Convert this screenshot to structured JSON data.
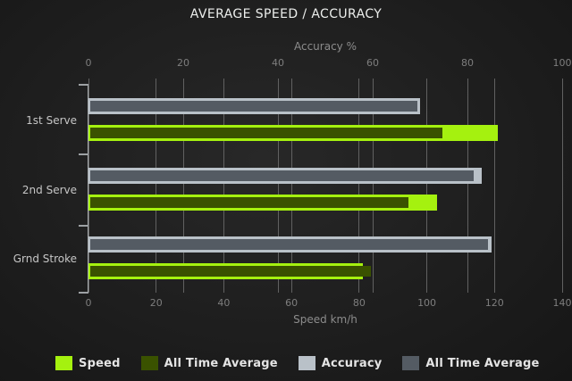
{
  "chart_data": {
    "type": "bar",
    "orientation": "horizontal",
    "title": "AVERAGE SPEED / ACCURACY",
    "categories": [
      "1st Serve",
      "2nd Serve",
      "Grnd Stroke"
    ],
    "axes": {
      "top": {
        "label": "Accuracy %",
        "min": 0,
        "max": 100,
        "ticks": [
          0,
          20,
          40,
          60,
          80,
          100
        ]
      },
      "bottom": {
        "label": "Speed km/h",
        "min": 0,
        "max": 140,
        "ticks": [
          0,
          20,
          40,
          60,
          80,
          100,
          120,
          140
        ]
      }
    },
    "grid": true,
    "legend_position": "bottom",
    "series": [
      {
        "name": "Speed",
        "axis": "bottom",
        "role": "outer",
        "color": "#a5f10f",
        "values": [
          121,
          103,
          81
        ]
      },
      {
        "name": "All Time Average",
        "axis": "bottom",
        "role": "inner",
        "color": "#3a5200",
        "values": [
          104,
          94,
          83
        ]
      },
      {
        "name": "Accuracy",
        "axis": "top",
        "role": "outer",
        "color": "#b9c1c8",
        "values": [
          70,
          83,
          85
        ]
      },
      {
        "name": "All Time Average",
        "axis": "top",
        "role": "inner",
        "color": "#545b63",
        "values": [
          69,
          81,
          84
        ]
      }
    ],
    "legend": [
      {
        "label": "Speed",
        "color": "#a5f10f"
      },
      {
        "label": "All Time Average",
        "color": "#3a5200"
      },
      {
        "label": "Accuracy",
        "color": "#b9c1c8"
      },
      {
        "label": "All Time Average",
        "color": "#545b63"
      }
    ]
  }
}
